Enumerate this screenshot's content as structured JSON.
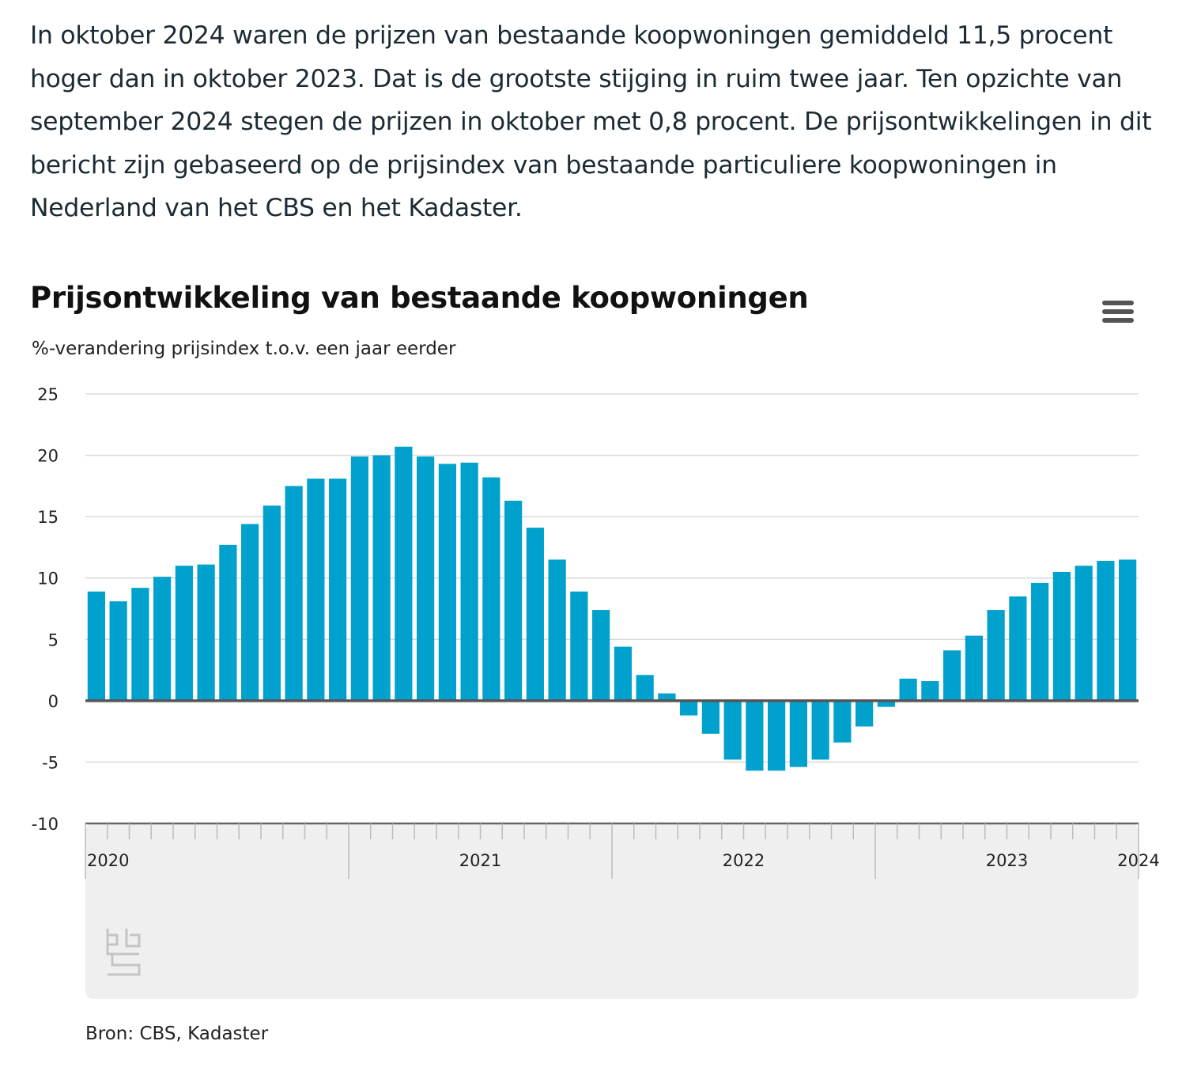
{
  "intro_text": "In oktober 2024 waren de prijzen van bestaande koopwoningen gemiddeld 11,5 procent hoger dan in oktober 2023. Dat is de grootste stijging in ruim twee jaar. Ten opzichte van september 2024 stegen de prijzen in oktober met 0,8 procent. De prijsontwikkelingen in dit bericht zijn gebaseerd op de prijsindex van bestaande particuliere koopwoningen in Nederland van het CBS en het Kadaster.",
  "menu_icon": "hamburger-menu-icon",
  "logo_icon": "cbs-logo",
  "source": "Bron: CBS, Kadaster",
  "colors": {
    "bar": "#00a1cd",
    "grid": "#d9d9d9",
    "zero_line": "#555555",
    "navigator_bg": "#efefef"
  },
  "chart_data": {
    "type": "bar",
    "title": "Prijsontwikkeling van bestaande koopwoningen",
    "subtitle": "%-verandering prijsindex t.o.v. een jaar eerder",
    "ylim": [
      -10,
      25
    ],
    "yticks": [
      "25",
      "20",
      "15",
      "10",
      "5",
      "0",
      "-5",
      "-10"
    ],
    "ytick_values": [
      25,
      20,
      15,
      10,
      5,
      0,
      -5,
      -10
    ],
    "grid": true,
    "x_start": "2020-01",
    "xtick_labels": [
      "2020",
      "2021",
      "2022",
      "2023",
      "2024"
    ],
    "values": [
      8.9,
      8.1,
      9.2,
      10.1,
      11.0,
      11.1,
      12.7,
      14.4,
      15.9,
      17.5,
      18.1,
      18.1,
      19.9,
      20.0,
      20.7,
      19.9,
      19.3,
      19.4,
      18.2,
      16.3,
      14.1,
      11.5,
      8.9,
      7.4,
      4.4,
      2.1,
      0.6,
      -1.2,
      -2.7,
      -4.8,
      -5.7,
      -5.7,
      -5.4,
      -4.8,
      -3.4,
      -2.1,
      -0.5,
      1.8,
      1.6,
      4.1,
      5.3,
      7.4,
      8.5,
      9.6,
      10.5,
      11.0,
      11.4,
      11.5
    ]
  }
}
